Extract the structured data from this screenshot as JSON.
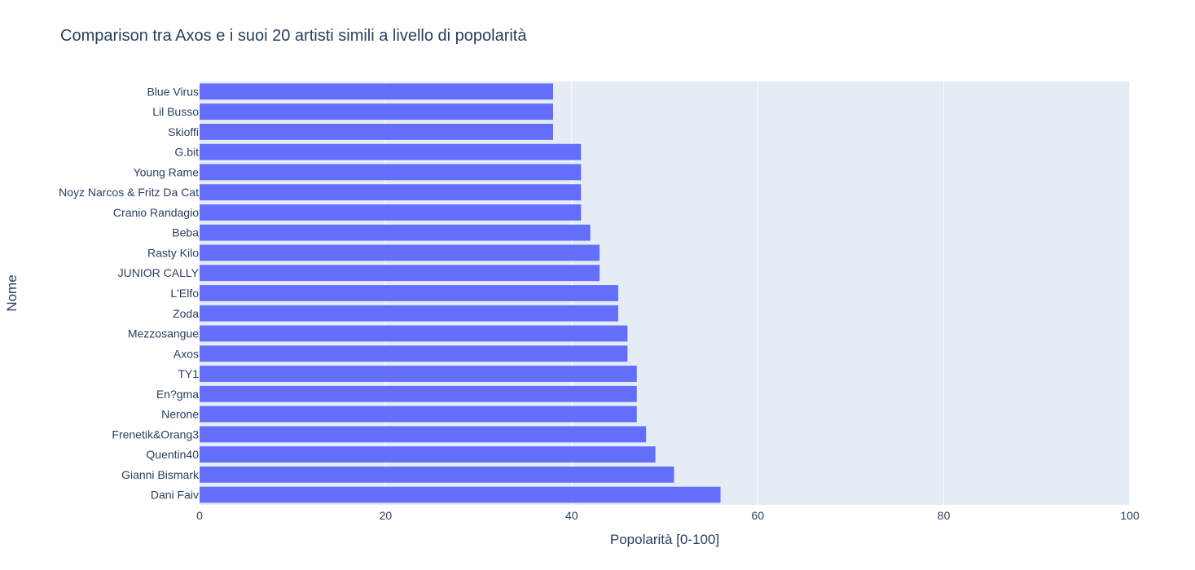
{
  "chart_data": {
    "type": "bar",
    "orientation": "horizontal",
    "title": "Comparison tra Axos e i suoi 20 artisti simili a livello di popolarità",
    "xlabel": "Popolarità [0-100]",
    "ylabel": "Nome",
    "xlim": [
      0,
      100
    ],
    "xticks": [
      0,
      20,
      40,
      60,
      80,
      100
    ],
    "grid": true,
    "categories": [
      "Blue Virus",
      "Lil Busso",
      "Skioffi",
      "G.bit",
      "Young Rame",
      "Noyz Narcos & Fritz Da Cat",
      "Cranio Randagio",
      "Beba",
      "Rasty Kilo",
      "JUNIOR CALLY",
      "L'Elfo",
      "Zoda",
      "Mezzosangue",
      "Axos",
      "TY1",
      "En?gma",
      "Nerone",
      "Frenetik&Orang3",
      "Quentin40",
      "Gianni Bismark",
      "Dani Faiv"
    ],
    "values": [
      38,
      38,
      38,
      41,
      41,
      41,
      41,
      42,
      43,
      43,
      45,
      45,
      46,
      46,
      47,
      47,
      47,
      48,
      49,
      51,
      56
    ],
    "colors": {
      "bar": "#636efa",
      "plot_bg": "#e5ecf6",
      "grid": "#ffffff",
      "text": "#2a3f5f"
    }
  }
}
